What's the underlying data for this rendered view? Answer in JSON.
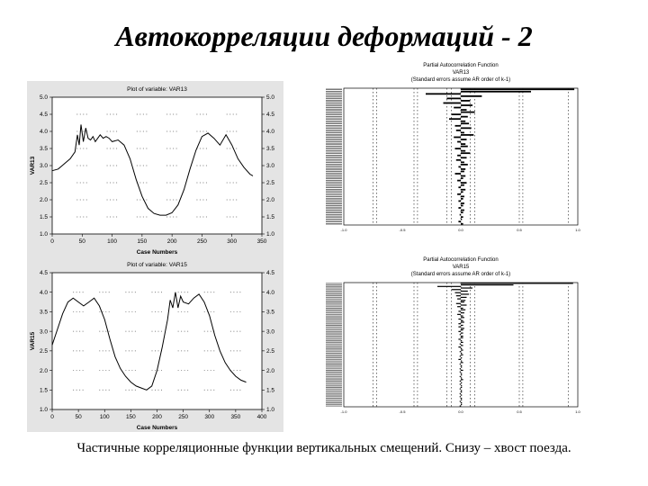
{
  "slide": {
    "title": "Автокорреляции деформаций - 2",
    "caption": "Частичные корреляционные функции вертикальных смещений. Снизу – хвост поезда."
  },
  "chart_data": [
    {
      "type": "line",
      "title": "Plot of variable: VAR13",
      "xlabel": "Case Numbers",
      "ylabel": "VAR13",
      "xlim": [
        0,
        350
      ],
      "ylim": [
        1.0,
        5.0
      ],
      "xticks": [
        0,
        50,
        100,
        150,
        200,
        250,
        300,
        350
      ],
      "yticks": [
        1.0,
        1.5,
        2.0,
        2.5,
        3.0,
        3.5,
        4.0,
        4.5,
        5.0
      ],
      "series": [
        {
          "x": [
            0,
            10,
            20,
            30,
            38,
            42,
            45,
            48,
            52,
            56,
            60,
            64,
            68,
            72,
            76,
            80,
            85,
            90,
            95,
            100,
            110,
            120,
            130,
            140,
            150,
            160,
            170,
            180,
            190,
            200,
            210,
            220,
            230,
            240,
            250,
            260,
            270,
            280,
            290,
            300,
            310,
            320,
            330,
            335
          ],
          "y": [
            2.85,
            2.9,
            3.05,
            3.2,
            3.4,
            3.9,
            3.6,
            4.2,
            3.7,
            4.1,
            3.8,
            3.75,
            3.85,
            3.7,
            3.8,
            3.9,
            3.8,
            3.85,
            3.8,
            3.7,
            3.75,
            3.6,
            3.2,
            2.6,
            2.1,
            1.75,
            1.6,
            1.55,
            1.55,
            1.62,
            1.85,
            2.3,
            2.9,
            3.45,
            3.85,
            3.95,
            3.8,
            3.6,
            3.9,
            3.6,
            3.2,
            2.95,
            2.75,
            2.7
          ]
        }
      ]
    },
    {
      "type": "line",
      "title": "Plot of variable: VAR15",
      "xlabel": "Case Numbers",
      "ylabel": "VAR15",
      "xlim": [
        0,
        400
      ],
      "ylim": [
        1.0,
        4.5
      ],
      "xticks": [
        0,
        50,
        100,
        150,
        200,
        250,
        300,
        350,
        400
      ],
      "yticks": [
        1.0,
        1.5,
        2.0,
        2.5,
        3.0,
        3.5,
        4.0,
        4.5
      ],
      "series": [
        {
          "x": [
            0,
            10,
            20,
            30,
            40,
            50,
            60,
            70,
            80,
            90,
            100,
            110,
            120,
            130,
            140,
            150,
            160,
            170,
            180,
            190,
            200,
            210,
            220,
            225,
            230,
            235,
            240,
            245,
            250,
            260,
            270,
            280,
            290,
            300,
            310,
            320,
            330,
            340,
            350,
            360,
            370
          ],
          "y": [
            2.65,
            3.05,
            3.45,
            3.75,
            3.85,
            3.75,
            3.65,
            3.75,
            3.85,
            3.65,
            3.3,
            2.8,
            2.35,
            2.05,
            1.85,
            1.7,
            1.6,
            1.55,
            1.5,
            1.6,
            2.0,
            2.6,
            3.3,
            3.8,
            3.6,
            4.0,
            3.6,
            3.9,
            3.75,
            3.7,
            3.85,
            3.95,
            3.75,
            3.4,
            2.9,
            2.5,
            2.2,
            2.0,
            1.85,
            1.75,
            1.7
          ]
        }
      ]
    },
    {
      "type": "bar",
      "title": "Partial Autocorrelation Function",
      "subtitle": "VAR13",
      "note": "(Standard errors assume AR order of k-1)",
      "orientation": "horizontal",
      "xticks": [
        "-1.0",
        "-0.5",
        "0.0",
        "0.5",
        "1.0"
      ],
      "xlim": [
        -1.0,
        1.0
      ],
      "lags": 60,
      "values": [
        0.97,
        0.6,
        -0.3,
        0.18,
        -0.12,
        0.08,
        -0.15,
        0.1,
        -0.06,
        0.05,
        0.12,
        -0.08,
        0.06,
        -0.1,
        0.04,
        0.07,
        -0.05,
        0.09,
        -0.04,
        0.03,
        0.11,
        -0.06,
        0.05,
        -0.03,
        0.04,
        0.06,
        -0.05,
        0.04,
        0.08,
        -0.03,
        0.05,
        -0.04,
        0.03,
        0.06,
        -0.02,
        0.04,
        0.03,
        -0.05,
        0.04,
        0.02,
        -0.03,
        0.05,
        0.03,
        -0.02,
        0.04,
        0.02,
        -0.03,
        0.03,
        0.02,
        -0.02,
        0.03,
        0.02,
        -0.02,
        0.03,
        0.02,
        -0.01,
        0.02,
        0.01,
        -0.02,
        0.02
      ]
    },
    {
      "type": "bar",
      "title": "Partial Autocorrelation Function",
      "subtitle": "VAR15",
      "note": "(Standard errors assume AR order of k-1)",
      "orientation": "horizontal",
      "xticks": [
        "-1.0",
        "-0.5",
        "0.0",
        "0.5",
        "1.0"
      ],
      "xlim": [
        -1.0,
        1.0
      ],
      "lags": 80,
      "values": [
        0.96,
        0.45,
        -0.2,
        0.1,
        -0.08,
        0.06,
        -0.05,
        0.07,
        -0.04,
        0.05,
        -0.03,
        0.04,
        0.03,
        -0.04,
        0.05,
        -0.03,
        0.02,
        0.04,
        -0.02,
        0.03,
        -0.03,
        0.02,
        0.03,
        -0.02,
        0.02,
        0.03,
        -0.02,
        0.02,
        -0.02,
        0.03,
        0.02,
        -0.02,
        0.02,
        -0.01,
        0.02,
        0.02,
        -0.02,
        0.01,
        0.02,
        -0.01,
        0.02,
        -0.02,
        0.01,
        0.02,
        -0.01,
        0.01,
        0.02,
        -0.01,
        0.01,
        -0.02,
        0.01,
        0.02,
        -0.01,
        0.01,
        0.01,
        -0.01,
        0.02,
        -0.01,
        0.01,
        0.01,
        -0.01,
        0.01,
        0.02,
        -0.01,
        0.01,
        -0.01,
        0.01,
        0.01,
        -0.01,
        0.01,
        0.01,
        -0.01,
        0.01,
        -0.01,
        0.01,
        0.01,
        -0.01,
        0.01,
        0.01,
        -0.01
      ]
    }
  ]
}
